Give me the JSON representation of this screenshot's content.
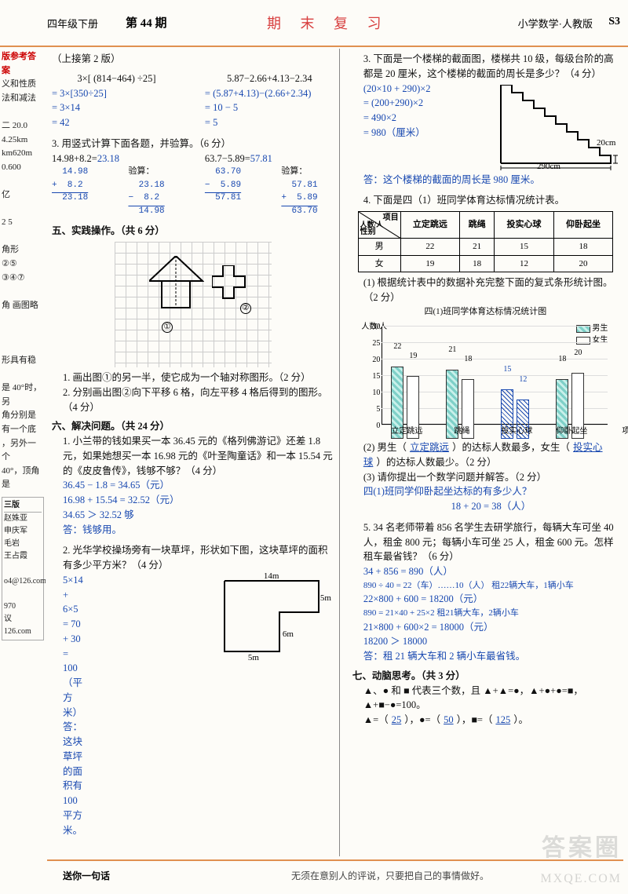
{
  "header": {
    "grade": "四年级下册",
    "issue_label": "第 44 期",
    "banner": "期 末 复 习",
    "subject": "小学数学·人教版",
    "pagecode": "S3"
  },
  "leftstrip": {
    "red_title": "版参考答案",
    "lines": [
      "义和性质",
      "法和减法",
      "",
      "二  20.0",
      "4.25km",
      "km620m",
      "0.600",
      "",
      "亿",
      "",
      "2  5",
      "",
      "角形",
      "②⑤",
      "③④⑦",
      "",
      "角  画图略",
      "",
      "",
      "",
      "形具有稳",
      "",
      "是 40°时，另",
      "角分别是",
      "有一个底",
      "，另外一个",
      "40°，顶角是"
    ],
    "colophon_title": "三版",
    "colophon": [
      "赵姝亚",
      "申庆军",
      "毛岩",
      "王占霞",
      "",
      "o4@126.com",
      "",
      "970",
      "议",
      "126.com"
    ]
  },
  "colA": {
    "continue": "（上接第 2 版）",
    "expr1": "3×[ (814−464) ÷25]",
    "expr1_l1": "= 3×[350÷25]",
    "expr1_l2": "= 3×14",
    "expr1_l3": "= 42",
    "expr2": "5.87−2.66+4.13−2.34",
    "expr2_l1": "= (5.87+4.13)−(2.66+2.34)",
    "expr2_l2": "= 10 − 5",
    "expr2_l3": "= 5",
    "q3": "3. 用竖式计算下面各题，并验算。（6 分）",
    "q3a": "14.98+8.2=",
    "q3a_ans": "23.18",
    "q3b": "63.7−5.89=",
    "q3b_ans": "57.81",
    "q3_col1_l1": "  14.98",
    "q3_col1_l2": "+  8.2 ",
    "q3_col1_l3": "  23.18",
    "q3_chk": "验算：",
    "q3_col2_l1": "  23.18",
    "q3_col2_l2": "−  8.2 ",
    "q3_col2_l3": "  14.98",
    "q3_col3_l1": "  63.70",
    "q3_col3_l2": "−  5.89",
    "q3_col3_l3": "  57.81",
    "q3_col4_l1": "  57.81",
    "q3_col4_l2": "+  5.89",
    "q3_col4_l3": "  63.70",
    "sec5": "五、实践操作。（共 6 分）",
    "circ1": "①",
    "circ2": "②",
    "p51": "1. 画出图①的另一半，使它成为一个轴对称图形。（2 分）",
    "p52": "2. 分别画出图②向下平移 6 格，向左平移 4 格后得到的图形。（4 分）",
    "sec6": "六、解决问题。（共 24 分）",
    "p61": "1. 小兰带的钱如果买一本 36.45 元的《格列佛游记》还差 1.8 元，如果她想买一本 16.98 元的《叶圣陶童话》和一本 15.54 元的《皮皮鲁传》，钱够不够？（4 分）",
    "p61_l1": "36.45 − 1.8 = 34.65（元）",
    "p61_l2": "16.98 + 15.54 = 32.52（元）",
    "p61_l3": "34.65 ＞ 32.52    够",
    "p61_ans": "答：钱够用。",
    "p62": "2. 光华学校操场旁有一块草坪，形状如下图，这块草坪的面积有多少平方米？（4 分）",
    "p62_l1": "5×14 + 6×5",
    "p62_l2": "= 70 + 30",
    "p62_l3": "= 100（平方米）",
    "p62_ans": "答：这块草坪的面积有100平方米。",
    "lawn_14": "14m",
    "lawn_5a": "5m",
    "lawn_6": "6m",
    "lawn_5b": "5m"
  },
  "colB": {
    "q3": "3. 下面是一个楼梯的截面图，楼梯共 10 级，每级台阶的高都是 20 厘米，这个楼梯的截面的周长是多少？（4 分）",
    "q3_l1": "(20×10 + 290)×2",
    "q3_l2": "= (200+290)×2",
    "q3_l3": "= 490×2",
    "q3_l4": "= 980（厘米）",
    "q3_ans": "答：这个楼梯的截面的周长是 980 厘米。",
    "stair_290": "290cm",
    "stair_20": "20cm",
    "q4": "4. 下面是四（1）班同学体育达标情况统计表。",
    "tbl_diag_top": "项目",
    "tbl_diag_mid": "人数/人",
    "tbl_diag_bot": "性别",
    "tbl_cols": [
      "立定跳远",
      "跳绳",
      "投实心球",
      "仰卧起坐"
    ],
    "tbl_row_m_h": "男",
    "tbl_row_m": [
      "22",
      "21",
      "15",
      "18"
    ],
    "tbl_row_f_h": "女",
    "tbl_row_f": [
      "19",
      "18",
      "12",
      "20"
    ],
    "q4_1": "(1) 根据统计表中的数据补充完整下面的复式条形统计图。（2 分）",
    "chart_title": "四(1)班同学体育达标情况统计图",
    "chart_ylab": "人数/人",
    "chart_xlab_end": "项目",
    "chart": {
      "ymax": 30,
      "ystep": 5,
      "colors": {
        "boy": "#7fd0c8",
        "girl": "#ffffff",
        "hand": "#1848b0",
        "axis": "#000000"
      },
      "categories": [
        "立定跳远",
        "跳绳",
        "投实心球",
        "仰卧起坐"
      ],
      "boy": [
        22,
        21,
        15,
        18
      ],
      "girl": [
        19,
        18,
        12,
        20
      ],
      "hand_drawn_group_index": 2,
      "legend_boy": "男生",
      "legend_girl": "女生"
    },
    "q4_2a": "(2) 男生（",
    "q4_2_fill1": "立定跳远",
    "q4_2b": "）的达标人数最多，女生（",
    "q4_2_fill2": "投实心球",
    "q4_2c": "）的达标人数最少。（2 分）",
    "q4_3": "(3) 请你提出一个数学问题并解答。（2 分）",
    "q4_3_l1": "四(1)班同学仰卧起坐达标的有多少人？",
    "q4_3_l2": "18 + 20 = 38（人）",
    "q5": "5. 34 名老师带着 856 名学生去研学旅行，每辆大车可坐 40 人，租金 800 元；每辆小车可坐 25 人，租金 600 元。怎样租车最省钱？（6 分）",
    "q5_l1": "34 + 856 = 890（人）",
    "q5_l2": "890 ÷ 40 = 22（车）……10（人）  租22辆大车，1辆小车",
    "q5_l3": "22×800 + 600 = 18200（元）",
    "q5_l4": "890 = 21×40 + 25×2  租21辆大车，2辆小车",
    "q5_l5": "21×800 + 600×2 = 18000（元）",
    "q5_l6": "18200 ＞ 18000",
    "q5_ans": "答：租 21 辆大车和 2 辆小车最省钱。",
    "sec7": "七、动脑思考。（共 3 分）",
    "q7": "▲、● 和 ■ 代表三个数，且 ▲+▲=●，▲+●+●=■，▲+■−●=100。",
    "q7_a": "▲=（",
    "q7_av": "25",
    "q7_b": "），●=（",
    "q7_bv": "50",
    "q7_c": "），■=（",
    "q7_cv": "125",
    "q7_d": "）。"
  },
  "footer": {
    "label": "送你一句话",
    "quote": "无须在意别人的评说，只要把自己的事情做好。"
  },
  "watermark": "答案圈",
  "watermark2": "MXQE.COM"
}
